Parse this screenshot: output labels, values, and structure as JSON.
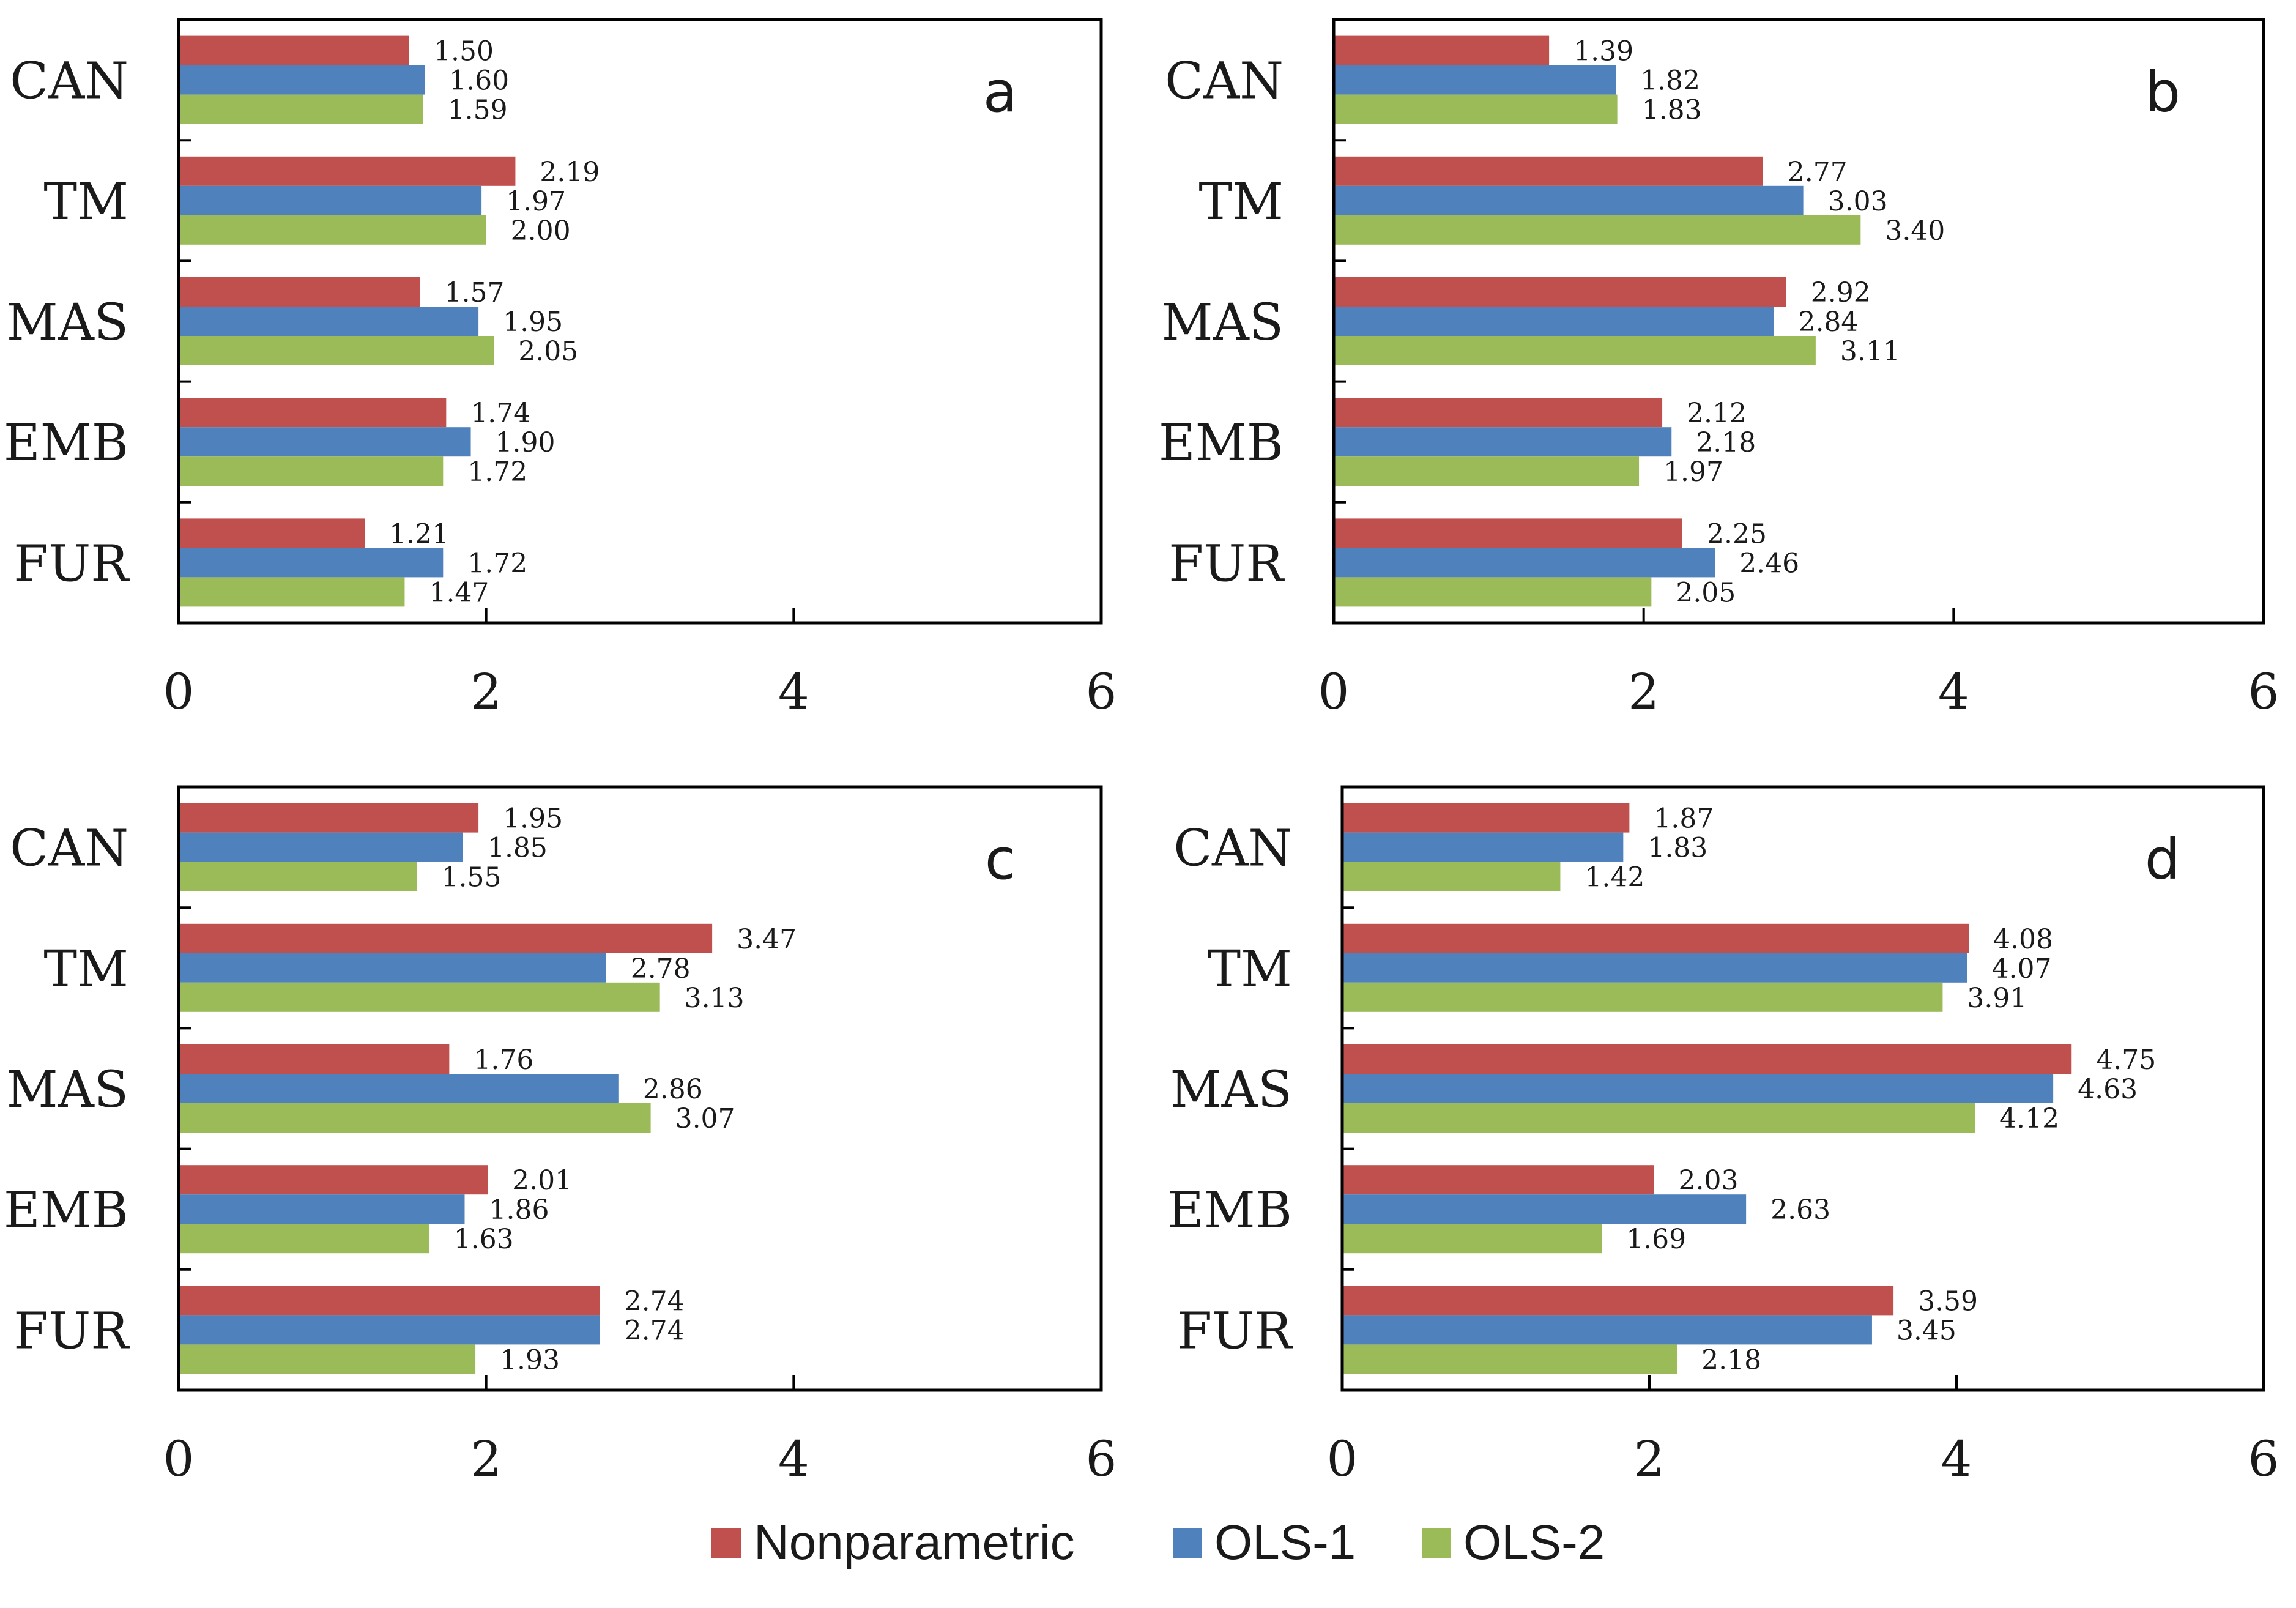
{
  "colors": {
    "nonparametric": "#c0504d",
    "ols1": "#4f81bd",
    "ols2": "#9bbb59",
    "axis": "#000000",
    "text": "#1a1a1a"
  },
  "legend": {
    "items": [
      {
        "key": "nonparametric",
        "label": "Nonparametric"
      },
      {
        "key": "ols1",
        "label": "OLS-1"
      },
      {
        "key": "ols2",
        "label": "OLS-2"
      }
    ]
  },
  "chart_data": [
    {
      "type": "bar",
      "orientation": "horizontal",
      "panel": "a",
      "categories": [
        "CAN",
        "TM",
        "MAS",
        "EMB",
        "FUR"
      ],
      "series": [
        {
          "name": "Nonparametric",
          "key": "nonparametric",
          "values": [
            1.5,
            2.19,
            1.57,
            1.74,
            1.21
          ],
          "labels": [
            "1.50",
            "2.19",
            "1.57",
            "1.74",
            "1.21"
          ]
        },
        {
          "name": "OLS-1",
          "key": "ols1",
          "values": [
            1.6,
            1.97,
            1.95,
            1.9,
            1.72
          ],
          "labels": [
            "1.60",
            "1.97",
            "1.95",
            "1.90",
            "1.72"
          ]
        },
        {
          "name": "OLS-2",
          "key": "ols2",
          "values": [
            1.59,
            2.0,
            2.05,
            1.72,
            1.47
          ],
          "labels": [
            "1.59",
            "2.00",
            "2.05",
            "1.72",
            "1.47"
          ]
        }
      ],
      "xlim": [
        0,
        6
      ],
      "xticks": [
        "0",
        "2",
        "4",
        "6"
      ],
      "grid": false,
      "legend_position": "bottom"
    },
    {
      "type": "bar",
      "orientation": "horizontal",
      "panel": "b",
      "categories": [
        "CAN",
        "TM",
        "MAS",
        "EMB",
        "FUR"
      ],
      "series": [
        {
          "name": "Nonparametric",
          "key": "nonparametric",
          "values": [
            1.39,
            2.77,
            2.92,
            2.12,
            2.25
          ],
          "labels": [
            "1.39",
            "2.77",
            "2.92",
            "2.12",
            "2.25"
          ]
        },
        {
          "name": "OLS-1",
          "key": "ols1",
          "values": [
            1.82,
            3.03,
            2.84,
            2.18,
            2.46
          ],
          "labels": [
            "1.82",
            "3.03",
            "2.84",
            "2.18",
            "2.46"
          ]
        },
        {
          "name": "OLS-2",
          "key": "ols2",
          "values": [
            1.83,
            3.4,
            3.11,
            1.97,
            2.05
          ],
          "labels": [
            "1.83",
            "3.40",
            "3.11",
            "1.97",
            "2.05"
          ]
        }
      ],
      "xlim": [
        0,
        6
      ],
      "xticks": [
        "0",
        "2",
        "4",
        "6"
      ],
      "grid": false,
      "legend_position": "bottom"
    },
    {
      "type": "bar",
      "orientation": "horizontal",
      "panel": "c",
      "categories": [
        "CAN",
        "TM",
        "MAS",
        "EMB",
        "FUR"
      ],
      "series": [
        {
          "name": "Nonparametric",
          "key": "nonparametric",
          "values": [
            1.95,
            3.47,
            1.76,
            2.01,
            2.74
          ],
          "labels": [
            "1.95",
            "3.47",
            "1.76",
            "2.01",
            "2.74"
          ]
        },
        {
          "name": "OLS-1",
          "key": "ols1",
          "values": [
            1.85,
            2.78,
            2.86,
            1.86,
            2.74
          ],
          "labels": [
            "1.85",
            "2.78",
            "2.86",
            "1.86",
            "2.74"
          ]
        },
        {
          "name": "OLS-2",
          "key": "ols2",
          "values": [
            1.55,
            3.13,
            3.07,
            1.63,
            1.93
          ],
          "labels": [
            "1.55",
            "3.13",
            "3.07",
            "1.63",
            "1.93"
          ]
        }
      ],
      "xlim": [
        0,
        6
      ],
      "xticks": [
        "0",
        "2",
        "4",
        "6"
      ],
      "grid": false,
      "legend_position": "bottom"
    },
    {
      "type": "bar",
      "orientation": "horizontal",
      "panel": "d",
      "categories": [
        "CAN",
        "TM",
        "MAS",
        "EMB",
        "FUR"
      ],
      "series": [
        {
          "name": "Nonparametric",
          "key": "nonparametric",
          "values": [
            1.87,
            4.08,
            4.75,
            2.03,
            3.59
          ],
          "labels": [
            "1.87",
            "4.08",
            "4.75",
            "2.03",
            "3.59"
          ]
        },
        {
          "name": "OLS-1",
          "key": "ols1",
          "values": [
            1.83,
            4.07,
            4.63,
            2.63,
            3.45
          ],
          "labels": [
            "1.83",
            "4.07",
            "4.63",
            "2.63",
            "3.45"
          ]
        },
        {
          "name": "OLS-2",
          "key": "ols2",
          "values": [
            1.42,
            3.91,
            4.12,
            1.69,
            2.18
          ],
          "labels": [
            "1.42",
            "3.91",
            "4.12",
            "1.69",
            "2.18"
          ]
        }
      ],
      "xlim": [
        0,
        6
      ],
      "xticks": [
        "0",
        "2",
        "4",
        "6"
      ],
      "grid": false,
      "legend_position": "bottom"
    }
  ]
}
